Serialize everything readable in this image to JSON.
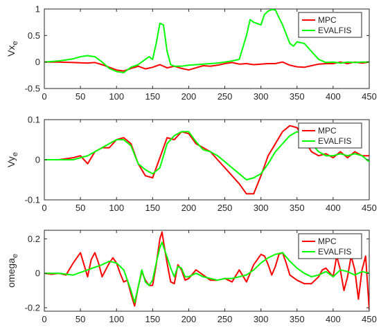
{
  "chart_data": [
    {
      "type": "line",
      "ylabel": "Vx",
      "ylabel_sub": "e",
      "xlim": [
        0,
        450
      ],
      "ylim": [
        -0.5,
        1
      ],
      "xticks": [
        "0",
        "50",
        "100",
        "150",
        "200",
        "250",
        "300",
        "350",
        "400",
        "450"
      ],
      "yticks": [
        "-0.5",
        "0",
        "0.5",
        "1"
      ],
      "grid": false,
      "legend": "top-right",
      "series": [
        {
          "name": "MPC",
          "color": "#ff0000",
          "x": [
            0,
            20,
            40,
            60,
            70,
            80,
            90,
            100,
            110,
            120,
            130,
            140,
            150,
            160,
            170,
            180,
            190,
            200,
            210,
            220,
            230,
            240,
            250,
            260,
            270,
            280,
            290,
            300,
            310,
            320,
            330,
            340,
            350,
            360,
            370,
            380,
            390,
            400,
            410,
            420,
            430,
            440,
            450
          ],
          "y": [
            0,
            0,
            -0.01,
            -0.02,
            -0.01,
            -0.05,
            -0.1,
            -0.15,
            -0.17,
            -0.12,
            -0.08,
            -0.13,
            -0.1,
            -0.05,
            -0.11,
            -0.08,
            -0.12,
            -0.15,
            -0.11,
            -0.07,
            -0.08,
            -0.06,
            -0.03,
            -0.01,
            -0.04,
            -0.03,
            -0.05,
            -0.04,
            -0.03,
            -0.03,
            0,
            -0.06,
            -0.09,
            -0.1,
            -0.07,
            -0.04,
            -0.03,
            -0.03,
            0,
            -0.03,
            0,
            -0.02,
            0
          ]
        },
        {
          "name": "EVALFIS",
          "color": "#00ff00",
          "x": [
            0,
            20,
            40,
            50,
            60,
            70,
            80,
            90,
            100,
            110,
            120,
            130,
            140,
            145,
            150,
            155,
            160,
            165,
            170,
            175,
            180,
            190,
            200,
            210,
            220,
            230,
            240,
            250,
            260,
            270,
            280,
            285,
            290,
            300,
            305,
            310,
            315,
            320,
            330,
            340,
            345,
            350,
            360,
            370,
            380,
            390,
            400,
            410,
            420,
            430,
            440,
            450
          ],
          "y": [
            0,
            0.02,
            0.06,
            0.1,
            0.12,
            0.1,
            0,
            -0.12,
            -0.18,
            -0.2,
            -0.1,
            -0.05,
            0.05,
            0.1,
            0.05,
            0.35,
            0.73,
            0.7,
            0.2,
            -0.05,
            -0.08,
            -0.08,
            -0.06,
            -0.05,
            -0.04,
            -0.03,
            -0.02,
            0,
            0.02,
            0.05,
            0.5,
            0.8,
            0.75,
            0.7,
            0.9,
            0.96,
            0.99,
            0.98,
            0.7,
            0.35,
            0.3,
            0.38,
            0.35,
            0.2,
            0.05,
            -0.01,
            0,
            -0.02,
            0,
            -0.01,
            0,
            0
          ]
        }
      ]
    },
    {
      "type": "line",
      "ylabel": "Vy",
      "ylabel_sub": "e",
      "xlim": [
        0,
        450
      ],
      "ylim": [
        -0.1,
        0.1
      ],
      "xticks": [
        "0",
        "50",
        "100",
        "150",
        "200",
        "250",
        "300",
        "350",
        "400",
        "450"
      ],
      "yticks": [
        "-0.1",
        "0",
        "0.1"
      ],
      "grid": false,
      "legend": "top-right",
      "series": [
        {
          "name": "MPC",
          "color": "#ff0000",
          "x": [
            0,
            20,
            40,
            50,
            60,
            70,
            80,
            90,
            100,
            110,
            120,
            130,
            140,
            150,
            160,
            170,
            180,
            190,
            200,
            210,
            220,
            230,
            240,
            250,
            260,
            270,
            280,
            290,
            300,
            310,
            320,
            330,
            340,
            350,
            360,
            370,
            380,
            390,
            400,
            410,
            420,
            430,
            440,
            450
          ],
          "y": [
            0,
            0,
            0.005,
            0.01,
            -0.01,
            0.02,
            0.03,
            0.03,
            0.05,
            0.055,
            0.04,
            -0.01,
            -0.04,
            -0.045,
            0.005,
            0.055,
            0.05,
            0.07,
            0.065,
            0.04,
            0.03,
            0.02,
            0,
            -0.02,
            -0.04,
            -0.06,
            -0.085,
            -0.085,
            -0.04,
            0.01,
            0.04,
            0.07,
            0.085,
            0.08,
            0.05,
            0.02,
            0.01,
            0.015,
            0.005,
            0.02,
            0.005,
            0.02,
            0.01,
            0.01
          ]
        },
        {
          "name": "EVALFIS",
          "color": "#00ff00",
          "x": [
            0,
            20,
            40,
            60,
            80,
            100,
            110,
            120,
            130,
            140,
            150,
            160,
            170,
            180,
            190,
            200,
            210,
            220,
            230,
            240,
            250,
            260,
            270,
            280,
            290,
            300,
            310,
            320,
            330,
            340,
            350,
            360,
            370,
            380,
            390,
            400,
            410,
            420,
            430,
            440,
            450
          ],
          "y": [
            0,
            0,
            0,
            0.01,
            0.03,
            0.05,
            0.05,
            0.035,
            -0.01,
            -0.025,
            -0.035,
            -0.02,
            0.04,
            0.06,
            0.07,
            0.07,
            0.045,
            0.025,
            0.02,
            0.01,
            -0.005,
            -0.02,
            -0.035,
            -0.05,
            -0.045,
            -0.035,
            -0.01,
            0.02,
            0.04,
            0.06,
            0.07,
            0.06,
            0.04,
            0.02,
            0.01,
            0.01,
            0.015,
            0.01,
            0.015,
            0.01,
            -0.005
          ]
        }
      ]
    },
    {
      "type": "line",
      "ylabel": "omega",
      "ylabel_sub": "e",
      "xlim": [
        0,
        450
      ],
      "ylim": [
        -0.22,
        0.25
      ],
      "xticks": [
        "0",
        "50",
        "100",
        "150",
        "200",
        "250",
        "300",
        "350",
        "400",
        "450"
      ],
      "yticks": [
        "-0.2",
        "0",
        "0.2"
      ],
      "grid": false,
      "legend": "top-right",
      "series": [
        {
          "name": "MPC",
          "color": "#ff0000",
          "x": [
            0,
            10,
            20,
            30,
            40,
            50,
            55,
            60,
            65,
            70,
            75,
            80,
            90,
            95,
            100,
            105,
            110,
            115,
            120,
            125,
            130,
            135,
            140,
            145,
            150,
            155,
            160,
            163,
            166,
            170,
            175,
            180,
            185,
            190,
            195,
            200,
            210,
            220,
            230,
            240,
            250,
            260,
            270,
            280,
            290,
            300,
            305,
            310,
            315,
            320,
            325,
            330,
            335,
            340,
            350,
            360,
            370,
            380,
            385,
            390,
            400,
            405,
            410,
            415,
            420,
            425,
            430,
            435,
            440,
            445,
            450
          ],
          "y": [
            0,
            -0.005,
            0,
            -0.01,
            0.06,
            0.12,
            0.05,
            -0.02,
            0.08,
            0.12,
            0.06,
            -0.02,
            0.06,
            0.09,
            0.06,
            0,
            -0.05,
            -0.04,
            -0.12,
            -0.19,
            -0.08,
            0.01,
            -0.04,
            -0.07,
            -0.07,
            0.05,
            0.2,
            0.24,
            0.16,
            0.06,
            -0.05,
            -0.06,
            0.05,
            0.02,
            -0.04,
            -0.03,
            0.02,
            -0.01,
            -0.04,
            -0.04,
            -0.03,
            -0.05,
            0.02,
            -0.05,
            0.05,
            0.11,
            0.1,
            0.05,
            -0.01,
            0.04,
            0.11,
            0.12,
            0.06,
            -0.01,
            -0.04,
            -0.06,
            -0.06,
            -0.02,
            0.02,
            0.03,
            -0.02,
            0.1,
            0.02,
            -0.1,
            -0.02,
            0.1,
            0.02,
            -0.15,
            0.02,
            0.1,
            -0.21
          ]
        },
        {
          "name": "EVALFIS",
          "color": "#00ff00",
          "x": [
            0,
            20,
            40,
            60,
            80,
            90,
            100,
            110,
            115,
            120,
            125,
            130,
            135,
            140,
            145,
            150,
            155,
            160,
            163,
            168,
            175,
            180,
            185,
            190,
            195,
            200,
            210,
            220,
            230,
            240,
            250,
            260,
            270,
            280,
            290,
            300,
            310,
            320,
            330,
            340,
            350,
            360,
            370,
            380,
            390,
            400,
            410,
            420,
            430,
            440,
            450
          ],
          "y": [
            0,
            0,
            -0.01,
            0.02,
            0.05,
            0.07,
            0.06,
            0.02,
            -0.04,
            -0.1,
            -0.17,
            -0.08,
            0.02,
            -0.05,
            -0.07,
            -0.04,
            0.06,
            0.15,
            0.18,
            0.12,
            0.03,
            -0.02,
            0.04,
            0.03,
            -0.02,
            -0.02,
            0,
            -0.02,
            -0.03,
            -0.04,
            -0.03,
            -0.03,
            -0.02,
            -0.01,
            0.02,
            0.06,
            0.09,
            0.11,
            0.12,
            0.07,
            0.03,
            0,
            -0.02,
            -0.01,
            0.01,
            -0.02,
            0.02,
            0.01,
            -0.01,
            0.01,
            0
          ]
        }
      ]
    }
  ]
}
